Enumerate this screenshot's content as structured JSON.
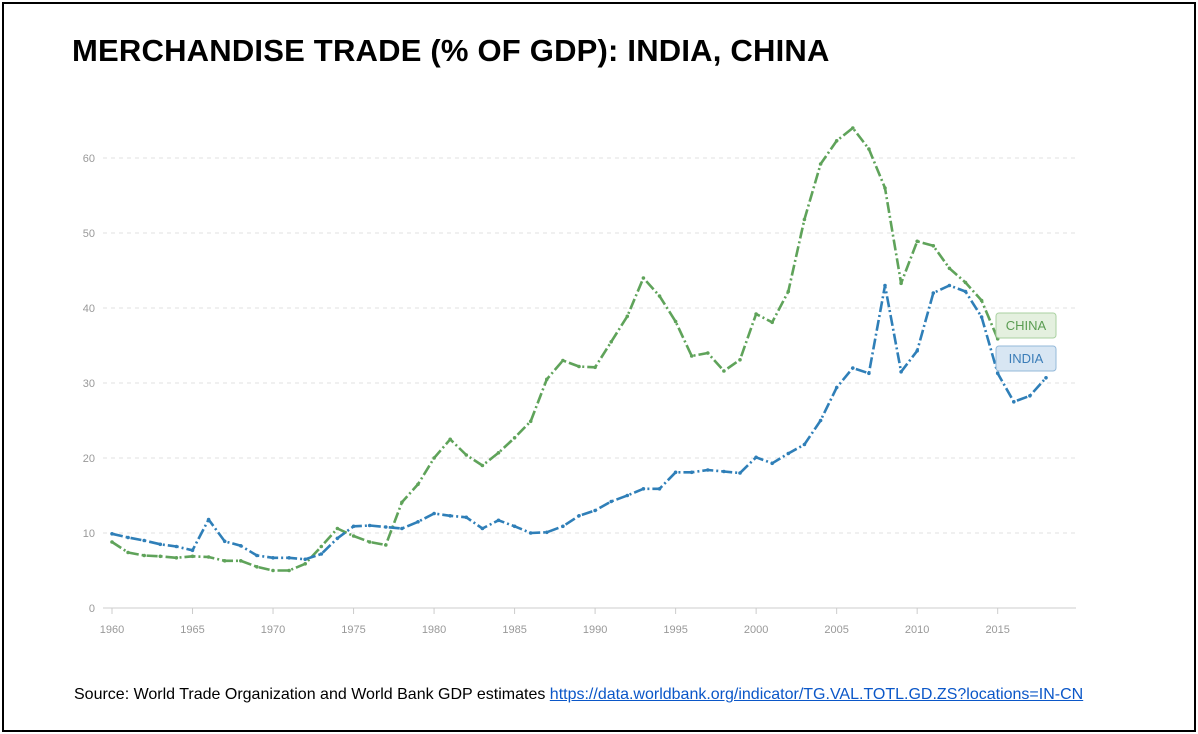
{
  "title": "MERCHANDISE TRADE (% OF GDP): INDIA, CHINA",
  "source": {
    "text": "Source: World Trade Organization and World Bank GDP estimates",
    "link_text": "https://data.worldbank.org/indicator/TG.VAL.TOTL.GD.ZS?locations=IN-CN"
  },
  "colors": {
    "china": "#5fa35a",
    "india": "#2f7fb8",
    "grid": "#e2e2e2"
  },
  "chart_data": {
    "type": "line",
    "title": "MERCHANDISE TRADE (% OF GDP): INDIA, CHINA",
    "xlabel": "",
    "ylabel": "",
    "xlim": [
      1960,
      2018
    ],
    "ylim": [
      0,
      60
    ],
    "x_ticks": [
      1960,
      1965,
      1970,
      1975,
      1980,
      1985,
      1990,
      1995,
      2000,
      2005,
      2010,
      2015
    ],
    "y_ticks": [
      0,
      10,
      20,
      30,
      40,
      50,
      60
    ],
    "grid": true,
    "x": [
      1960,
      1961,
      1962,
      1963,
      1964,
      1965,
      1966,
      1967,
      1968,
      1969,
      1970,
      1971,
      1972,
      1973,
      1974,
      1975,
      1976,
      1977,
      1978,
      1979,
      1980,
      1981,
      1982,
      1983,
      1984,
      1985,
      1986,
      1987,
      1988,
      1989,
      1990,
      1991,
      1992,
      1993,
      1994,
      1995,
      1996,
      1997,
      1998,
      1999,
      2000,
      2001,
      2002,
      2003,
      2004,
      2005,
      2006,
      2007,
      2008,
      2009,
      2010,
      2011,
      2012,
      2013,
      2014,
      2015,
      2016,
      2017,
      2018
    ],
    "series": [
      {
        "name": "CHINA",
        "values": [
          8.8,
          7.4,
          7.0,
          6.9,
          6.7,
          6.9,
          6.8,
          6.3,
          6.3,
          5.5,
          5.0,
          5.0,
          5.9,
          8.2,
          10.6,
          9.6,
          8.8,
          8.4,
          14.1,
          16.5,
          20.0,
          22.5,
          20.4,
          19.0,
          20.7,
          22.7,
          24.9,
          30.5,
          33.0,
          32.2,
          32.1,
          35.5,
          38.9,
          44.0,
          41.6,
          38.2,
          33.6,
          34.0,
          31.6,
          33.1,
          39.2,
          38.1,
          42.2,
          51.8,
          59.2,
          62.3,
          64.0,
          61.2,
          56.0,
          43.3,
          48.9,
          48.3,
          45.3,
          43.4,
          41.0,
          35.9,
          null,
          null,
          null
        ]
      },
      {
        "name": "INDIA",
        "values": [
          9.9,
          9.4,
          9.0,
          8.5,
          8.2,
          7.7,
          11.8,
          8.9,
          8.3,
          7.0,
          6.7,
          6.7,
          6.5,
          7.2,
          9.3,
          10.9,
          11.0,
          10.8,
          10.6,
          11.5,
          12.6,
          12.3,
          12.1,
          10.6,
          11.7,
          10.9,
          10.0,
          10.1,
          10.9,
          12.3,
          13.0,
          14.2,
          15.0,
          15.9,
          15.9,
          18.1,
          18.1,
          18.4,
          18.2,
          18.0,
          20.1,
          19.3,
          20.6,
          21.8,
          25.0,
          29.4,
          32.0,
          31.3,
          43.0,
          31.5,
          34.3,
          42.0,
          43.0,
          42.2,
          38.8,
          31.3,
          27.5,
          28.3,
          30.7
        ]
      }
    ],
    "labels": [
      "CHINA",
      "INDIA"
    ]
  }
}
